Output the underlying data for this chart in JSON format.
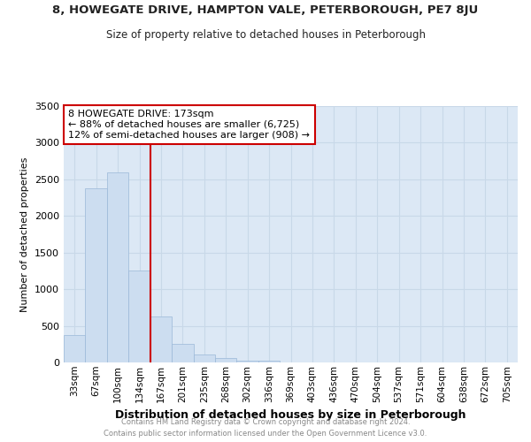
{
  "title": "8, HOWEGATE DRIVE, HAMPTON VALE, PETERBOROUGH, PE7 8JU",
  "subtitle": "Size of property relative to detached houses in Peterborough",
  "xlabel": "Distribution of detached houses by size in Peterborough",
  "ylabel": "Number of detached properties",
  "annotation_line1": "8 HOWEGATE DRIVE: 173sqm",
  "annotation_line2": "← 88% of detached houses are smaller (6,725)",
  "annotation_line3": "12% of semi-detached houses are larger (908) →",
  "categories": [
    "33sqm",
    "67sqm",
    "100sqm",
    "134sqm",
    "167sqm",
    "201sqm",
    "235sqm",
    "268sqm",
    "302sqm",
    "336sqm",
    "369sqm",
    "403sqm",
    "436sqm",
    "470sqm",
    "504sqm",
    "537sqm",
    "571sqm",
    "604sqm",
    "638sqm",
    "672sqm",
    "705sqm"
  ],
  "values": [
    375,
    2375,
    2600,
    1250,
    625,
    250,
    110,
    55,
    30,
    30,
    0,
    0,
    0,
    0,
    0,
    0,
    0,
    0,
    0,
    0,
    0
  ],
  "ylim": [
    0,
    3500
  ],
  "yticks": [
    0,
    500,
    1000,
    1500,
    2000,
    2500,
    3000,
    3500
  ],
  "bar_color": "#ccddf0",
  "bar_edge_color": "#9ab8d8",
  "line_color": "#cc0000",
  "annotation_box_color": "#cc0000",
  "ref_bar_index": 4,
  "bg_color": "#ffffff",
  "plot_bg_color": "#dce8f5",
  "grid_color": "#c8d8e8",
  "footer_line1": "Contains HM Land Registry data © Crown copyright and database right 2024.",
  "footer_line2": "Contains public sector information licensed under the Open Government Licence v3.0."
}
